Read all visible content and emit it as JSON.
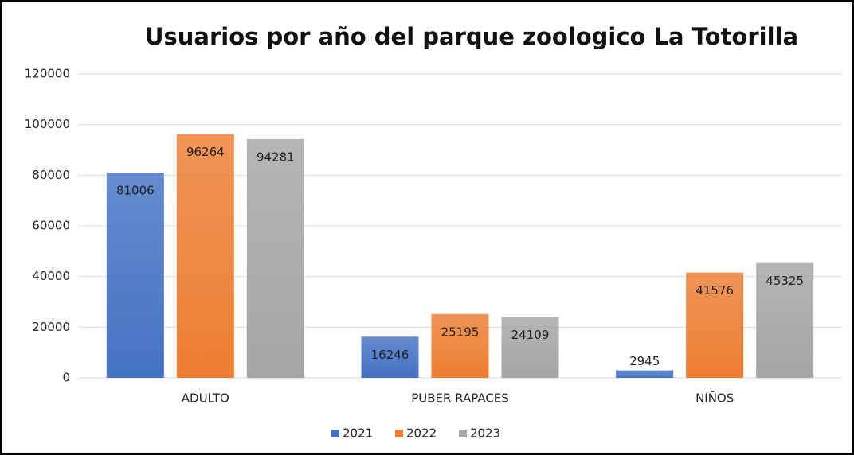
{
  "chart_data": {
    "type": "bar",
    "title": "Usuarios por año del parque zoologico La Totorilla",
    "categories": [
      "ADULTO",
      "PUBER RAPACES",
      "NIÑOS"
    ],
    "series": [
      {
        "name": "2021",
        "color": "#4472c4",
        "values": [
          81006,
          16246,
          2945
        ]
      },
      {
        "name": "2022",
        "color": "#ed7d31",
        "values": [
          96264,
          25195,
          41576
        ]
      },
      {
        "name": "2023",
        "color": "#a5a5a5",
        "values": [
          94281,
          24109,
          45325
        ]
      }
    ],
    "ylim": [
      0,
      120000
    ],
    "yticks": [
      0,
      20000,
      40000,
      60000,
      80000,
      100000,
      120000
    ],
    "grid": true,
    "legend": "bottom"
  }
}
